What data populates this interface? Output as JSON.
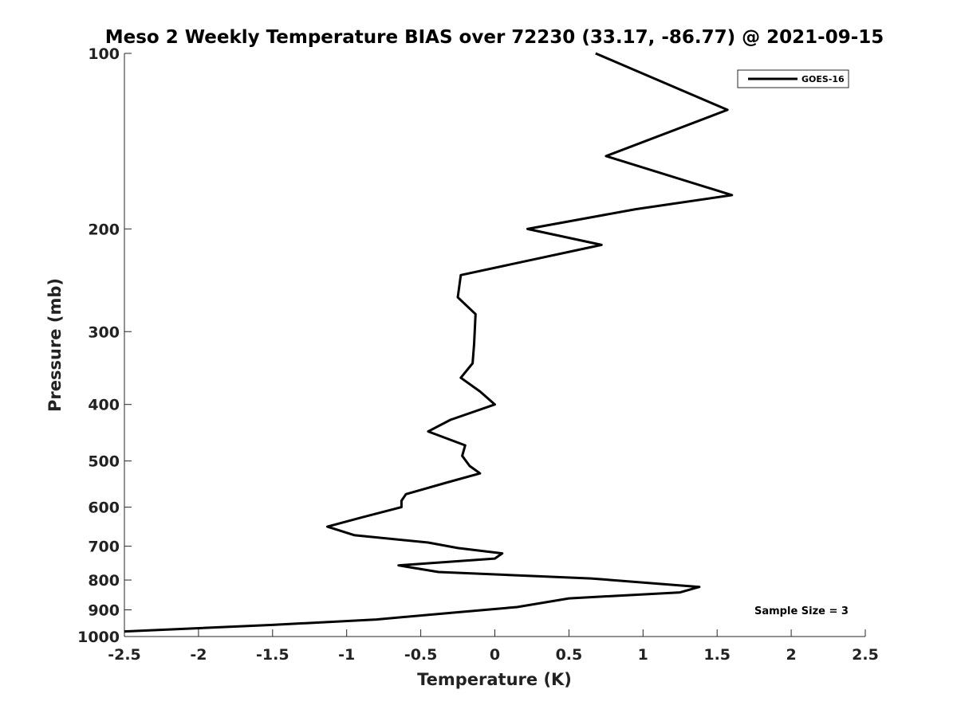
{
  "chart_data": {
    "type": "line",
    "title": "Meso 2 Weekly Temperature BIAS over 72230 (33.17, -86.77) @ 2021-09-15",
    "xlabel": "Temperature (K)",
    "ylabel": "Pressure (mb)",
    "xlim": [
      -2.5,
      2.5
    ],
    "ylim": [
      100,
      1000
    ],
    "yscale": "log",
    "yreversed": true,
    "x_ticks": [
      -2.5,
      -2,
      -1.5,
      -1,
      -0.5,
      0,
      0.5,
      1,
      1.5,
      2,
      2.5
    ],
    "x_tick_labels": [
      "-2.5",
      "-2",
      "-1.5",
      "-1",
      "-0.5",
      "0",
      "0.5",
      "1",
      "1.5",
      "2",
      "2.5"
    ],
    "y_ticks": [
      100,
      200,
      300,
      400,
      500,
      600,
      700,
      800,
      900,
      1000
    ],
    "y_tick_labels": [
      "100",
      "200",
      "300",
      "400",
      "500",
      "600",
      "700",
      "800",
      "900",
      "1000"
    ],
    "grid": false,
    "legend_position": "top-right",
    "annotation": "Sample Size = 3",
    "series": [
      {
        "name": "GOES-16",
        "color": "#000000",
        "points": [
          [
            0.68,
            100
          ],
          [
            1.57,
            125
          ],
          [
            0.75,
            150
          ],
          [
            1.6,
            175
          ],
          [
            0.95,
            185
          ],
          [
            0.22,
            200
          ],
          [
            0.72,
            213
          ],
          [
            -0.23,
            240
          ],
          [
            -0.25,
            262
          ],
          [
            -0.13,
            280
          ],
          [
            -0.14,
            315
          ],
          [
            -0.15,
            340
          ],
          [
            -0.23,
            360
          ],
          [
            -0.1,
            380
          ],
          [
            0.0,
            400
          ],
          [
            -0.3,
            425
          ],
          [
            -0.45,
            445
          ],
          [
            -0.2,
            470
          ],
          [
            -0.22,
            490
          ],
          [
            -0.17,
            510
          ],
          [
            -0.1,
            525
          ],
          [
            -0.33,
            545
          ],
          [
            -0.6,
            570
          ],
          [
            -0.63,
            585
          ],
          [
            -0.63,
            600
          ],
          [
            -0.9,
            625
          ],
          [
            -1.13,
            648
          ],
          [
            -0.95,
            670
          ],
          [
            -0.45,
            690
          ],
          [
            -0.25,
            705
          ],
          [
            0.05,
            720
          ],
          [
            0.0,
            735
          ],
          [
            -0.65,
            755
          ],
          [
            -0.38,
            775
          ],
          [
            0.65,
            795
          ],
          [
            1.38,
            822
          ],
          [
            1.25,
            840
          ],
          [
            0.5,
            860
          ],
          [
            0.15,
            890
          ],
          [
            -0.28,
            910
          ],
          [
            -0.8,
            935
          ],
          [
            -1.5,
            955
          ],
          [
            -2.5,
            980
          ]
        ]
      }
    ]
  }
}
